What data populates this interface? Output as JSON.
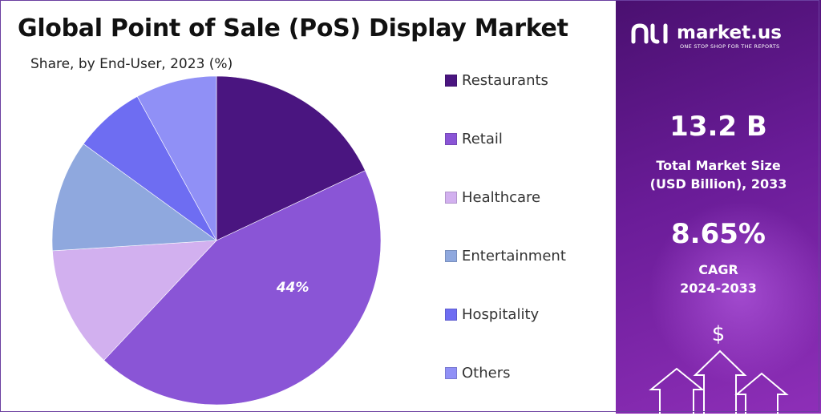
{
  "header": {
    "title": "Global Point of Sale (PoS) Display Market",
    "subtitle": "Share, by End-User, 2023 (%)"
  },
  "chart_data": {
    "type": "pie",
    "title": "Global Point of Sale (PoS) Display Market",
    "subtitle": "Share, by End-User, 2023 (%)",
    "start_angle_deg": 0,
    "direction": "clockwise",
    "slices": [
      {
        "label": "Restaurants",
        "value": 18,
        "color": "#4a1580"
      },
      {
        "label": "Retail",
        "value": 44,
        "color": "#8a55d6",
        "data_label": "44%"
      },
      {
        "label": "Healthcare",
        "value": 12,
        "color": "#d2b0ef"
      },
      {
        "label": "Entertainment",
        "value": 11,
        "color": "#8fa8de"
      },
      {
        "label": "Hospitality",
        "value": 7,
        "color": "#6e6df2"
      },
      {
        "label": "Others",
        "value": 8,
        "color": "#9090f6"
      }
    ],
    "legend_position": "right"
  },
  "sidebar": {
    "logo_text": "market.us",
    "tagline": "ONE STOP SHOP FOR THE REPORTS",
    "market_size_value": "13.2 B",
    "market_size_label_line1": "Total Market Size",
    "market_size_label_line2": "(USD Billion), 2033",
    "cagr_value": "8.65%",
    "cagr_label": "CAGR",
    "cagr_period": "2024-2033",
    "dollar_symbol": "$"
  }
}
